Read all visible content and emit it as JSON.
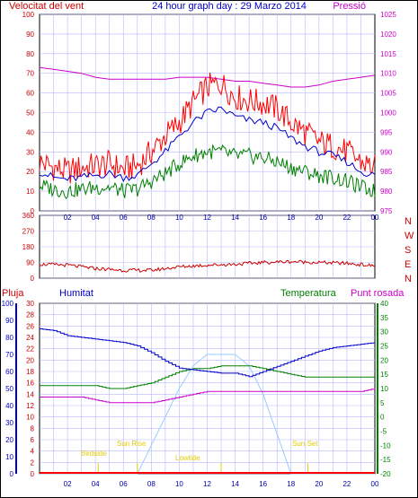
{
  "chart_data": [
    {
      "type": "line",
      "title": "24 hour graph day : 29 Marzo 2014",
      "left_axis_label": "Velocitat del vent",
      "right_axis_label": "Pressió",
      "x_ticks": [
        "02",
        "04",
        "06",
        "08",
        "10",
        "12",
        "14",
        "16",
        "18",
        "20",
        "22",
        "00"
      ],
      "ylim_left": [
        0,
        100
      ],
      "ylim_right": [
        975,
        1025
      ],
      "y_ticks_left": [
        "0",
        "10",
        "20",
        "30",
        "40",
        "50",
        "60",
        "70",
        "80",
        "90",
        "100"
      ],
      "y_ticks_right": [
        "975",
        "980",
        "985",
        "990",
        "995",
        "1000",
        "1005",
        "1010",
        "1015",
        "1020",
        "1025"
      ],
      "grid": true,
      "x_hours": [
        0,
        1,
        2,
        3,
        4,
        5,
        6,
        7,
        8,
        9,
        10,
        11,
        12,
        13,
        14,
        15,
        16,
        17,
        18,
        19,
        20,
        21,
        22,
        23,
        24
      ],
      "series": [
        {
          "color": "#ff0000",
          "axis": "left",
          "values": [
            25,
            22,
            20,
            22,
            23,
            24,
            21,
            23,
            30,
            38,
            45,
            55,
            63,
            65,
            58,
            56,
            55,
            52,
            45,
            40,
            35,
            33,
            30,
            25,
            22
          ],
          "amplitude": 7
        },
        {
          "color": "#0000cc",
          "axis": "left",
          "values": [
            20,
            17,
            16,
            17,
            18,
            19,
            17,
            18,
            24,
            30,
            38,
            45,
            50,
            52,
            48,
            46,
            45,
            42,
            37,
            33,
            30,
            28,
            25,
            20,
            18
          ],
          "amplitude": 2
        },
        {
          "color": "#008000",
          "axis": "left",
          "values": [
            13,
            11,
            10,
            11,
            12,
            12,
            10,
            11,
            15,
            19,
            24,
            28,
            30,
            30,
            28,
            28,
            27,
            25,
            22,
            20,
            18,
            17,
            15,
            12,
            10
          ],
          "amplitude": 4
        },
        {
          "color": "#cc00cc",
          "axis": "right",
          "values": [
            1011.5,
            1011,
            1010.5,
            1010,
            1009,
            1008.5,
            1008.5,
            1008.5,
            1008.5,
            1008.5,
            1009,
            1009,
            1009,
            1008.5,
            1008,
            1008,
            1007.5,
            1007,
            1006.5,
            1006.5,
            1007,
            1008,
            1008.5,
            1009,
            1009.5
          ],
          "amplitude": 0
        }
      ]
    },
    {
      "type": "line",
      "right_letters": [
        "N",
        "W",
        "S",
        "E",
        "N"
      ],
      "ylim": [
        0,
        360
      ],
      "y_ticks": [
        "0",
        "90",
        "180",
        "270",
        "360"
      ],
      "grid": true,
      "x_hours": [
        0,
        2,
        4,
        6,
        8,
        10,
        12,
        14,
        16,
        18,
        20,
        22,
        24
      ],
      "series": [
        {
          "color": "#cc0000",
          "values": [
            80,
            75,
            55,
            45,
            45,
            65,
            75,
            80,
            90,
            95,
            90,
            85,
            70
          ],
          "amplitude": 10
        }
      ]
    },
    {
      "type": "line",
      "left_labels": {
        "rain": "Pluja",
        "humidity": "Humitat"
      },
      "right_labels": {
        "temperature": "Temperatura",
        "dewpoint": "Punt rosada"
      },
      "ylim_rain": [
        0,
        30
      ],
      "ylim_humidity": [
        0,
        100
      ],
      "ylim_temp": [
        -20,
        40
      ],
      "y_ticks_rain": [
        "0",
        "2",
        "4",
        "6",
        "8",
        "10",
        "12",
        "14",
        "16",
        "18",
        "20",
        "22",
        "24",
        "26",
        "28",
        "30"
      ],
      "y_ticks_humidity": [
        "0",
        "10",
        "20",
        "30",
        "40",
        "50",
        "60",
        "70",
        "80",
        "90",
        "100"
      ],
      "y_ticks_temp": [
        "-20",
        "-15",
        "-10",
        "-5",
        "0",
        "5",
        "10",
        "15",
        "20",
        "25",
        "30",
        "35",
        "40"
      ],
      "grid": true,
      "x_hours": [
        0,
        1,
        2,
        3,
        4,
        5,
        6,
        7,
        8,
        9,
        10,
        11,
        12,
        13,
        14,
        15,
        16,
        17,
        18,
        19,
        20,
        21,
        22,
        23,
        24
      ],
      "series": [
        {
          "color": "#0000cc",
          "axis": "humidity",
          "values": [
            85,
            84,
            81,
            80,
            79,
            78,
            77,
            75,
            71,
            66,
            62,
            61,
            60,
            59,
            59,
            57,
            60,
            63,
            66,
            69,
            72,
            74,
            75,
            76,
            77
          ]
        },
        {
          "color": "#008000",
          "axis": "temp",
          "values": [
            11,
            11,
            11,
            11,
            11,
            10,
            10,
            11,
            12,
            14,
            16,
            17,
            17,
            18,
            18,
            18,
            17,
            16,
            15,
            14,
            14,
            14,
            14,
            14,
            14
          ]
        },
        {
          "color": "#cc00cc",
          "axis": "temp",
          "values": [
            7,
            7,
            7,
            7,
            6,
            5,
            5,
            5,
            5,
            6,
            7,
            8,
            9,
            9,
            9,
            9,
            9,
            9,
            9,
            9,
            9,
            9,
            9,
            9,
            10
          ]
        },
        {
          "color": "#99ccff",
          "axis": "rain",
          "values": [
            0,
            0,
            0,
            0,
            0,
            0,
            0,
            0,
            5,
            10,
            15,
            19,
            21,
            21,
            21,
            19,
            14,
            7,
            0,
            0,
            0,
            0,
            0,
            0,
            0
          ]
        }
      ],
      "annotations": {
        "birdside": "Birdside",
        "sunrise": "Sun Rise",
        "lowtide": "Lowtide",
        "sunset": "Sun Set"
      }
    }
  ]
}
